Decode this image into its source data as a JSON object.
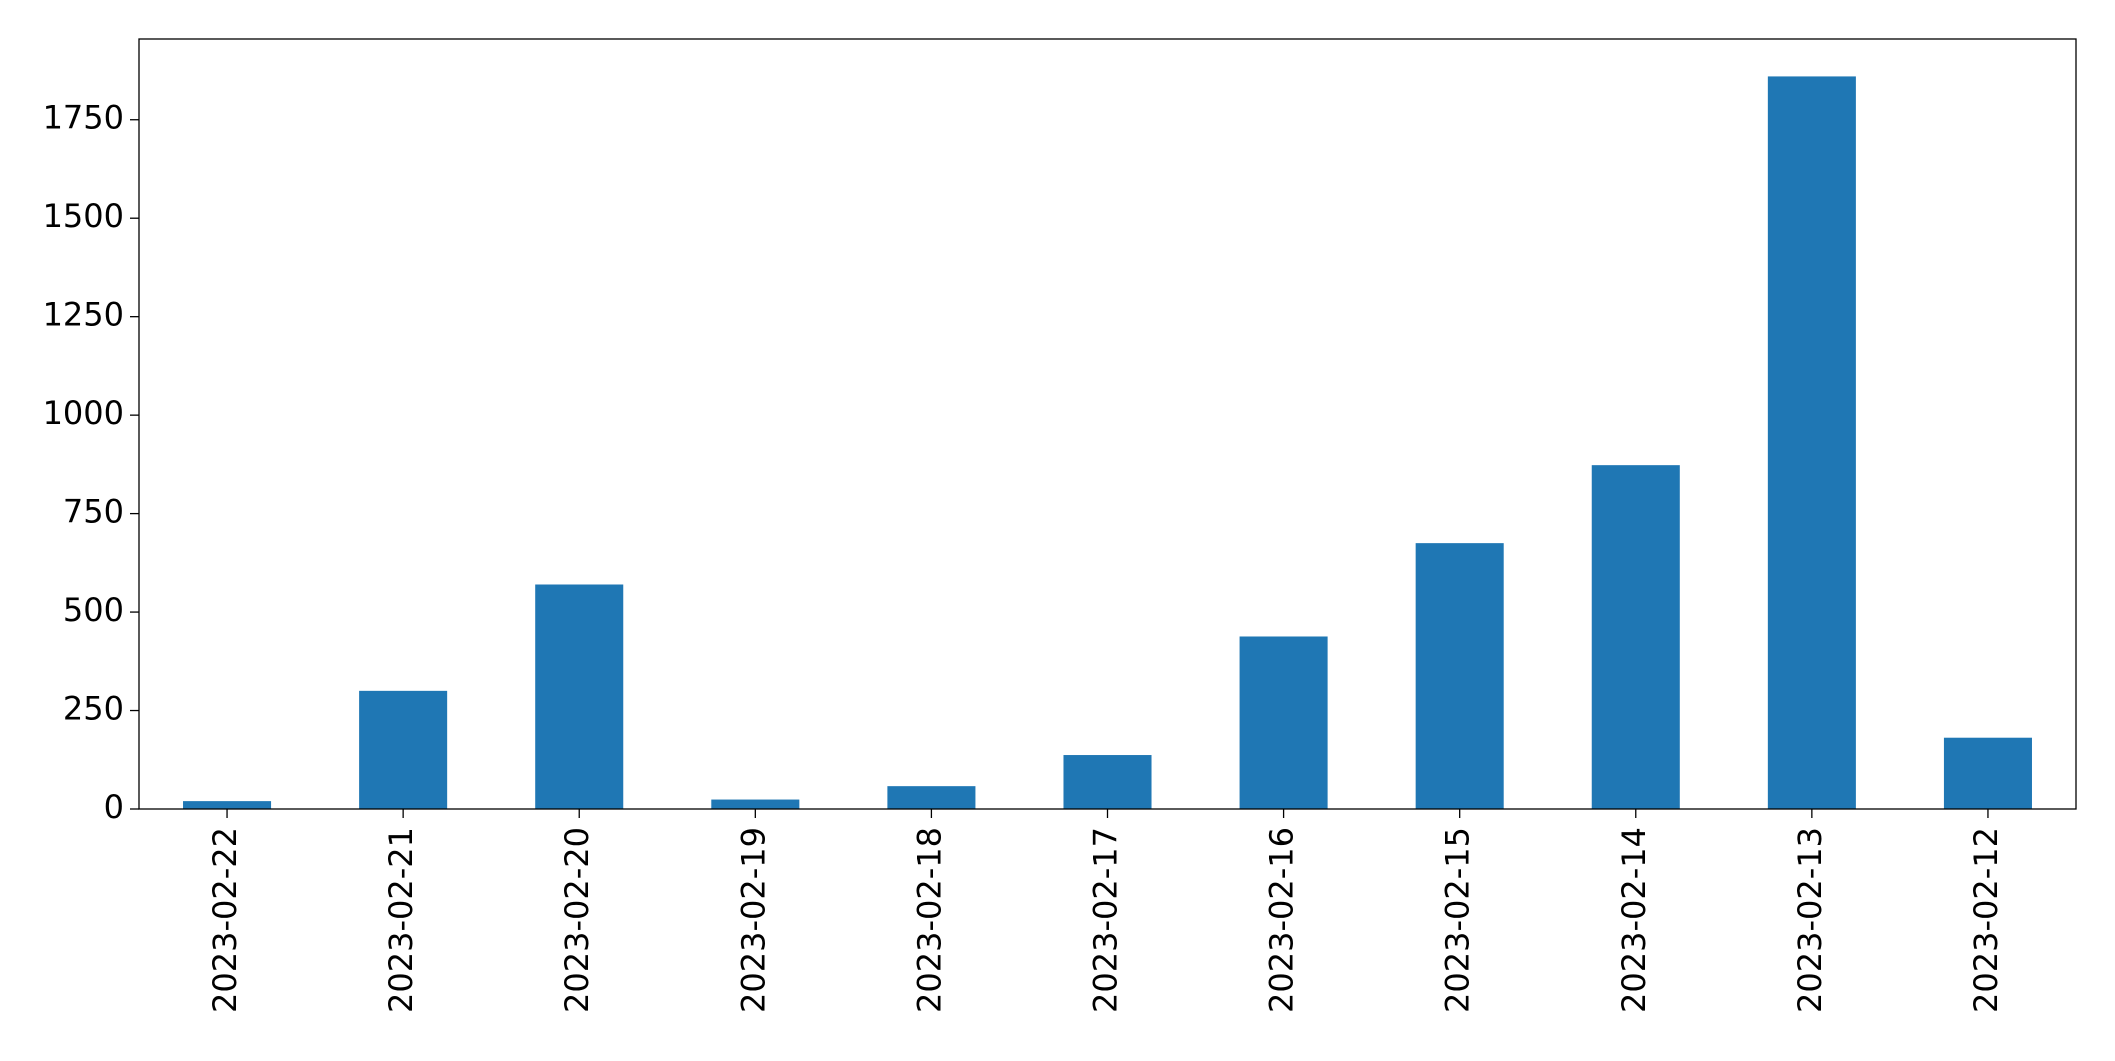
{
  "chart_data": {
    "type": "bar",
    "categories": [
      "2023-02-22",
      "2023-02-21",
      "2023-02-20",
      "2023-02-19",
      "2023-02-18",
      "2023-02-17",
      "2023-02-16",
      "2023-02-15",
      "2023-02-14",
      "2023-02-13",
      "2023-02-12"
    ],
    "values": [
      20,
      300,
      570,
      24,
      58,
      137,
      438,
      675,
      873,
      1860,
      181
    ],
    "color": "#1f77b4",
    "ylim": [
      0,
      1955
    ],
    "yticks": [
      0,
      250,
      500,
      750,
      1000,
      1250,
      1500,
      1750
    ],
    "grid": false
  }
}
